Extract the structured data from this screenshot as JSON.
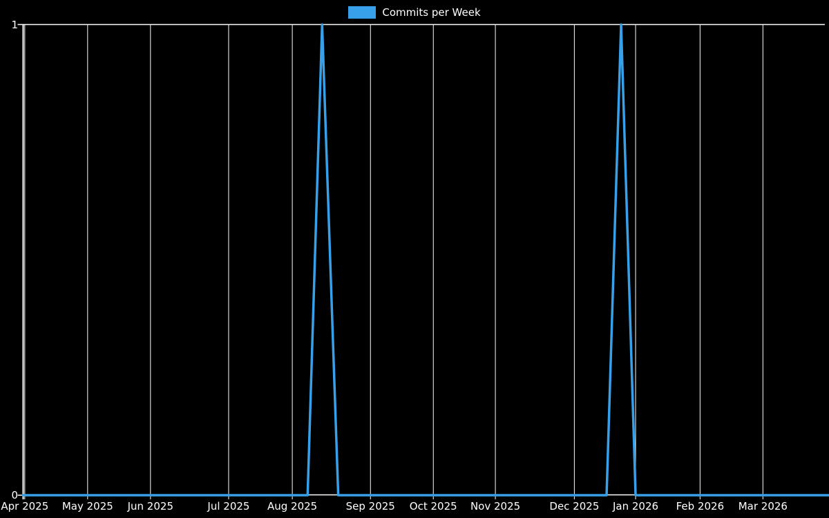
{
  "page": {
    "background_color": "#000000",
    "text_color": "#ffffff",
    "grid_color": "#ffffff"
  },
  "chart_data": {
    "type": "line",
    "title": "Commits per Week",
    "legend": {
      "label": "Commits per Week",
      "color": "#38A0E8",
      "position": "top-center"
    },
    "xlabel": "",
    "ylabel": "",
    "ylim": [
      0,
      1
    ],
    "grid": {
      "vertical": true,
      "horizontal": false,
      "top_border": true
    },
    "y_ticks": [
      {
        "label": "1",
        "value": 1
      },
      {
        "label": "0",
        "value": 0
      }
    ],
    "x_ticks": [
      {
        "label": "Apr 2025",
        "pos": 0.002
      },
      {
        "label": "May 2025",
        "pos": 0.08
      },
      {
        "label": "Jun 2025",
        "pos": 0.158
      },
      {
        "label": "Jul 2025",
        "pos": 0.255
      },
      {
        "label": "Aug 2025",
        "pos": 0.334
      },
      {
        "label": "Sep 2025",
        "pos": 0.431
      },
      {
        "label": "Oct 2025",
        "pos": 0.509
      },
      {
        "label": "Nov 2025",
        "pos": 0.586
      },
      {
        "label": "Dec 2025",
        "pos": 0.684
      },
      {
        "label": "Jan 2026",
        "pos": 0.76
      },
      {
        "label": "Feb 2026",
        "pos": 0.84
      },
      {
        "label": "Mar 2026",
        "pos": 0.918
      }
    ],
    "series": [
      {
        "name": "Commits per Week",
        "color": "#38A0E8",
        "line_width": 3.5,
        "points": [
          {
            "x": 0.0,
            "y": 0
          },
          {
            "x": 0.353,
            "y": 0
          },
          {
            "x": 0.371,
            "y": 1
          },
          {
            "x": 0.391,
            "y": 0
          },
          {
            "x": 0.724,
            "y": 0
          },
          {
            "x": 0.742,
            "y": 1
          },
          {
            "x": 0.76,
            "y": 0
          },
          {
            "x": 1.0,
            "y": 0
          }
        ],
        "summary": "Weekly commit counts are 0 for the whole Apr 2025 - Mar 2026 range except two single-commit spikes: one week in mid-August 2025 (value 1) and one week in late December 2025 (value 1)."
      }
    ]
  }
}
